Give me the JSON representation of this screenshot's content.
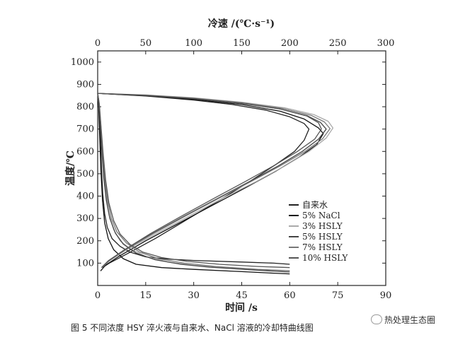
{
  "caption": "图 5   不同浓度 HSY 淬火液与自来水、NaCl 溶液的冷却特曲线图",
  "watermark": "热处理生态圈",
  "chart_data": {
    "type": "line",
    "title": "",
    "xlabel": "时间 /s",
    "x2label": "冷速 /(℃·s⁻¹)",
    "ylabel": "温度/℃",
    "xlim": [
      0,
      90
    ],
    "x2lim": [
      0,
      300
    ],
    "ylim": [
      0,
      1050
    ],
    "x_ticks": [
      0,
      15,
      30,
      45,
      60,
      75,
      90
    ],
    "x2_ticks": [
      0,
      50,
      100,
      150,
      200,
      250,
      300
    ],
    "y_ticks": [
      100,
      200,
      300,
      400,
      500,
      600,
      700,
      800,
      900,
      1000
    ],
    "legend_position": "center-right",
    "series": [
      {
        "name": "自来水",
        "color": "#222222",
        "time_temp": [
          [
            0,
            860
          ],
          [
            0.3,
            830
          ],
          [
            0.6,
            760
          ],
          [
            0.9,
            640
          ],
          [
            1.2,
            520
          ],
          [
            1.6,
            410
          ],
          [
            2.2,
            320
          ],
          [
            3,
            260
          ],
          [
            4.5,
            210
          ],
          [
            7,
            175
          ],
          [
            10,
            150
          ],
          [
            15,
            128
          ],
          [
            22,
            118
          ],
          [
            30,
            112
          ],
          [
            45,
            105
          ],
          [
            55,
            100
          ],
          [
            60,
            95
          ]
        ],
        "rate_temp": [
          [
            0,
            860
          ],
          [
            50,
            848
          ],
          [
            100,
            830
          ],
          [
            140,
            810
          ],
          [
            175,
            785
          ],
          [
            200,
            755
          ],
          [
            215,
            725
          ],
          [
            220,
            700
          ],
          [
            215,
            650
          ],
          [
            205,
            600
          ],
          [
            185,
            540
          ],
          [
            160,
            470
          ],
          [
            130,
            390
          ],
          [
            95,
            300
          ],
          [
            60,
            210
          ],
          [
            30,
            140
          ],
          [
            12,
            100
          ],
          [
            5,
            80
          ]
        ]
      },
      {
        "name": "5% NaCl",
        "color": "#111111",
        "time_temp": [
          [
            0,
            860
          ],
          [
            0.3,
            800
          ],
          [
            0.6,
            680
          ],
          [
            1,
            520
          ],
          [
            1.5,
            380
          ],
          [
            2.2,
            280
          ],
          [
            3.3,
            210
          ],
          [
            5,
            160
          ],
          [
            8,
            120
          ],
          [
            12,
            95
          ],
          [
            20,
            80
          ],
          [
            30,
            72
          ],
          [
            45,
            62
          ],
          [
            55,
            55
          ],
          [
            60,
            52
          ]
        ],
        "rate_temp": [
          [
            0,
            860
          ],
          [
            50,
            849
          ],
          [
            100,
            833
          ],
          [
            150,
            810
          ],
          [
            190,
            780
          ],
          [
            215,
            745
          ],
          [
            230,
            705
          ],
          [
            235,
            680
          ],
          [
            228,
            630
          ],
          [
            210,
            575
          ],
          [
            185,
            510
          ],
          [
            155,
            440
          ],
          [
            120,
            360
          ],
          [
            85,
            280
          ],
          [
            50,
            200
          ],
          [
            22,
            130
          ],
          [
            8,
            90
          ],
          [
            3,
            65
          ]
        ]
      },
      {
        "name": "3% HSLY",
        "color": "#aaaaaa",
        "time_temp": [
          [
            0,
            860
          ],
          [
            0.4,
            820
          ],
          [
            0.8,
            740
          ],
          [
            1.3,
            620
          ],
          [
            1.9,
            500
          ],
          [
            2.6,
            400
          ],
          [
            3.5,
            320
          ],
          [
            5,
            250
          ],
          [
            7,
            200
          ],
          [
            10,
            165
          ],
          [
            15,
            130
          ],
          [
            22,
            105
          ],
          [
            30,
            90
          ],
          [
            45,
            75
          ],
          [
            60,
            65
          ]
        ],
        "rate_temp": [
          [
            0,
            860
          ],
          [
            50,
            853
          ],
          [
            100,
            840
          ],
          [
            150,
            820
          ],
          [
            195,
            795
          ],
          [
            225,
            765
          ],
          [
            240,
            735
          ],
          [
            245,
            705
          ],
          [
            238,
            660
          ],
          [
            220,
            600
          ],
          [
            195,
            535
          ],
          [
            165,
            465
          ],
          [
            130,
            390
          ],
          [
            95,
            310
          ],
          [
            60,
            230
          ],
          [
            30,
            160
          ],
          [
            12,
            110
          ],
          [
            5,
            85
          ]
        ]
      },
      {
        "name": "5% HSLY",
        "color": "#444444",
        "time_temp": [
          [
            0,
            860
          ],
          [
            0.4,
            815
          ],
          [
            0.8,
            730
          ],
          [
            1.3,
            600
          ],
          [
            1.9,
            480
          ],
          [
            2.7,
            380
          ],
          [
            3.8,
            300
          ],
          [
            5.5,
            235
          ],
          [
            8,
            185
          ],
          [
            12,
            145
          ],
          [
            18,
            115
          ],
          [
            26,
            95
          ],
          [
            35,
            82
          ],
          [
            48,
            70
          ],
          [
            60,
            60
          ]
        ],
        "rate_temp": [
          [
            0,
            860
          ],
          [
            50,
            850
          ],
          [
            100,
            836
          ],
          [
            150,
            815
          ],
          [
            190,
            790
          ],
          [
            218,
            760
          ],
          [
            232,
            730
          ],
          [
            238,
            700
          ],
          [
            230,
            655
          ],
          [
            213,
            600
          ],
          [
            188,
            535
          ],
          [
            158,
            465
          ],
          [
            125,
            390
          ],
          [
            90,
            310
          ],
          [
            56,
            230
          ],
          [
            28,
            160
          ],
          [
            11,
            110
          ],
          [
            4,
            80
          ]
        ]
      },
      {
        "name": "7% HSLY",
        "color": "#777777",
        "time_temp": [
          [
            0,
            860
          ],
          [
            0.4,
            818
          ],
          [
            0.9,
            730
          ],
          [
            1.5,
            600
          ],
          [
            2.2,
            480
          ],
          [
            3.1,
            380
          ],
          [
            4.3,
            300
          ],
          [
            6,
            240
          ],
          [
            9,
            190
          ],
          [
            13,
            150
          ],
          [
            19,
            120
          ],
          [
            27,
            100
          ],
          [
            37,
            85
          ],
          [
            50,
            72
          ],
          [
            60,
            66
          ]
        ],
        "rate_temp": [
          [
            0,
            860
          ],
          [
            50,
            852
          ],
          [
            100,
            838
          ],
          [
            150,
            818
          ],
          [
            192,
            793
          ],
          [
            222,
            762
          ],
          [
            236,
            732
          ],
          [
            242,
            702
          ],
          [
            234,
            656
          ],
          [
            216,
            600
          ],
          [
            190,
            535
          ],
          [
            160,
            466
          ],
          [
            127,
            392
          ],
          [
            92,
            312
          ],
          [
            58,
            232
          ],
          [
            29,
            160
          ],
          [
            12,
            110
          ],
          [
            5,
            82
          ]
        ]
      },
      {
        "name": "10% HSLY",
        "color": "#555555",
        "time_temp": [
          [
            0,
            860
          ],
          [
            0.5,
            815
          ],
          [
            1,
            720
          ],
          [
            1.7,
            590
          ],
          [
            2.5,
            470
          ],
          [
            3.5,
            370
          ],
          [
            5,
            290
          ],
          [
            7,
            230
          ],
          [
            10,
            185
          ],
          [
            14,
            150
          ],
          [
            20,
            125
          ],
          [
            28,
            108
          ],
          [
            38,
            95
          ],
          [
            50,
            85
          ],
          [
            60,
            80
          ]
        ],
        "rate_temp": [
          [
            0,
            860
          ],
          [
            50,
            851
          ],
          [
            100,
            837
          ],
          [
            150,
            816
          ],
          [
            190,
            790
          ],
          [
            218,
            758
          ],
          [
            230,
            728
          ],
          [
            233,
            700
          ],
          [
            226,
            655
          ],
          [
            208,
            600
          ],
          [
            183,
            535
          ],
          [
            154,
            466
          ],
          [
            122,
            392
          ],
          [
            88,
            312
          ],
          [
            55,
            232
          ],
          [
            28,
            160
          ],
          [
            11,
            110
          ],
          [
            4,
            80
          ]
        ]
      }
    ]
  }
}
